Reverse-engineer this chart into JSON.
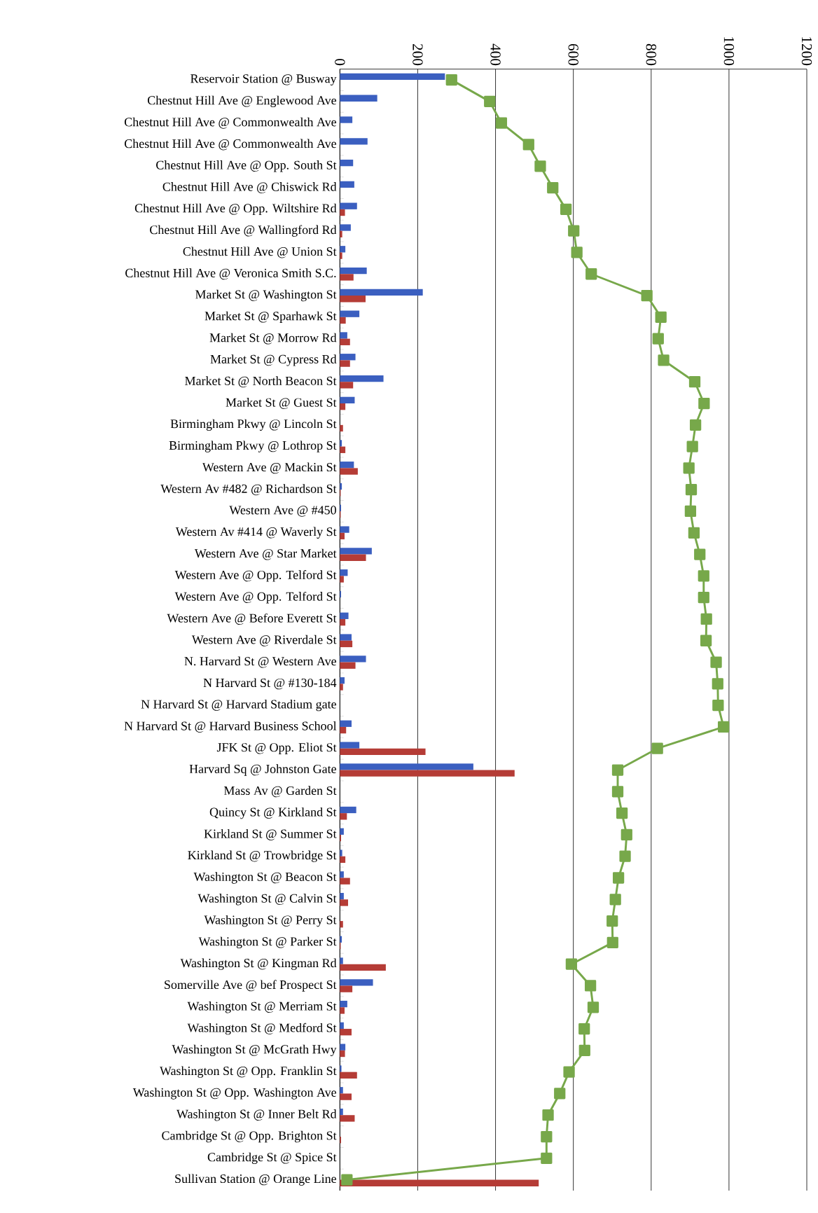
{
  "chart_data": {
    "type": "bar",
    "orientation": "horizontal",
    "categories": [
      "Reservoir Station @ Busway",
      "Chestnut Hill Ave @ Englewood Ave",
      "Chestnut Hill Ave @ Commonwealth Ave",
      "Chestnut Hill Ave @ Commonwealth Ave",
      "Chestnut Hill Ave @ Opp. South St",
      "Chestnut Hill Ave @ Chiswick Rd",
      "Chestnut Hill Ave @ Opp. Wiltshire Rd",
      "Chestnut Hill Ave @ Wallingford Rd",
      "Chestnut Hill Ave @ Union St",
      "Chestnut Hill Ave @ Veronica Smith S.C.",
      "Market St @ Washington St",
      "Market St @ Sparhawk St",
      "Market St @ Morrow Rd",
      "Market St @ Cypress Rd",
      "Market St @ North Beacon St",
      "Market St @ Guest St",
      "Birmingham Pkwy @ Lincoln St",
      "Birmingham Pkwy @ Lothrop St",
      "Western Ave @ Mackin St",
      "Western Av #482 @ Richardson St",
      "Western Ave @ #450",
      "Western Av #414 @ Waverly St",
      "Western Ave @ Star Market",
      "Western Ave @ Opp. Telford St",
      "Western Ave @ Opp. Telford St",
      "Western Ave @ Before Everett St",
      "Western Ave @ Riverdale St",
      "N. Harvard St @ Western Ave",
      "N Harvard St @ #130-184",
      "N Harvard St @ Harvard Stadium gate",
      "N Harvard St @ Harvard Business School",
      "JFK St @ Opp. Eliot St",
      "Harvard Sq @ Johnston Gate",
      "Mass Av @ Garden St",
      "Quincy St @ Kirkland St",
      "Kirkland St @ Summer St",
      "Kirkland St @ Trowbridge St",
      "Washington St @ Beacon St",
      "Washington St @ Calvin St",
      "Washington St @ Perry St",
      "Washington St @ Parker St",
      "Washington St @ Kingman Rd",
      "Somerville Ave @ bef Prospect St",
      "Washington St @ Merriam St",
      "Washington St @ Medford St",
      "Washington St @ McGrath Hwy",
      "Washington St @ Opp. Franklin St",
      "Washington St @ Opp. Washington Ave",
      "Washington St @ Inner Belt Rd",
      "Cambridge St @ Opp. Brighton St",
      "Cambridge St @ Spice St",
      "Sullivan Station @ Orange Line"
    ],
    "series": [
      {
        "color": "#3b5fc0",
        "values": [
          270,
          96,
          32,
          71,
          34,
          37,
          44,
          28,
          14,
          69,
          213,
          50,
          19,
          40,
          112,
          38,
          0,
          5,
          36,
          5,
          3,
          24,
          82,
          20,
          3,
          22,
          30,
          67,
          12,
          0,
          30,
          50,
          343,
          0,
          42,
          10,
          6,
          10,
          10,
          0,
          5,
          8,
          85,
          19,
          10,
          14,
          4,
          8,
          8,
          0,
          0,
          0
        ]
      },
      {
        "color": "#b53c36",
        "values": [
          0,
          0,
          0,
          0,
          0,
          0,
          13,
          6,
          6,
          35,
          66,
          15,
          26,
          26,
          34,
          14,
          8,
          14,
          46,
          2,
          2,
          12,
          67,
          10,
          0,
          14,
          32,
          40,
          8,
          0,
          16,
          220,
          449,
          0,
          18,
          3,
          14,
          26,
          21,
          8,
          2,
          118,
          32,
          12,
          30,
          13,
          44,
          30,
          38,
          3,
          0,
          511
        ]
      },
      {
        "type": "line",
        "color": "#77a84a",
        "values": [
          287,
          385,
          415,
          485,
          515,
          547,
          581,
          601,
          609,
          646,
          789,
          825,
          818,
          832,
          912,
          936,
          914,
          906,
          897,
          903,
          901,
          910,
          925,
          935,
          935,
          942,
          941,
          967,
          971,
          972,
          986,
          816,
          714,
          714,
          725,
          737,
          733,
          716,
          708,
          700,
          701,
          595,
          644,
          651,
          628,
          629,
          589,
          565,
          535,
          531,
          531,
          18
        ]
      }
    ],
    "marker": "square",
    "xlim": [
      0,
      1200
    ],
    "xticks": [
      0,
      200,
      400,
      600,
      800,
      1000,
      1200
    ],
    "grid": "x"
  }
}
